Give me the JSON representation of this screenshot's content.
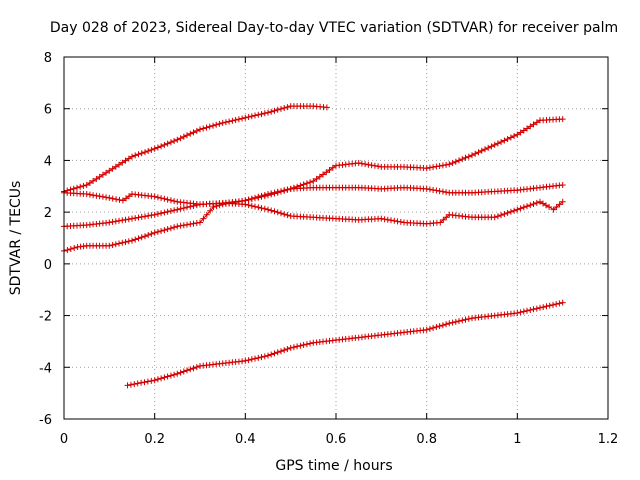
{
  "chart_data": {
    "type": "scatter",
    "title": "Day 028 of 2023, Sidereal Day-to-day VTEC variation (SDTVAR) for receiver palm",
    "xlabel": "GPS time / hours",
    "ylabel": "SDTVAR / TECUs",
    "xlim": [
      0,
      1.2
    ],
    "ylim": [
      -6,
      8
    ],
    "x_ticks": [
      0,
      0.2,
      0.4,
      0.6,
      0.8,
      1,
      1.2
    ],
    "x_tick_labels": [
      "0",
      "0.2",
      "0.4",
      "0.6",
      "0.8",
      "1",
      "1.2"
    ],
    "y_ticks": [
      -6,
      -4,
      -2,
      0,
      2,
      4,
      6,
      8
    ],
    "y_tick_labels": [
      "-6",
      "-4",
      "-2",
      "0",
      "2",
      "4",
      "6",
      "8"
    ],
    "grid": true,
    "color": "#d40000",
    "series": [
      {
        "name": "series-1",
        "points": [
          [
            0.0,
            2.8
          ],
          [
            0.05,
            3.05
          ],
          [
            0.1,
            3.6
          ],
          [
            0.15,
            4.15
          ],
          [
            0.2,
            4.45
          ],
          [
            0.25,
            4.8
          ],
          [
            0.3,
            5.2
          ],
          [
            0.35,
            5.45
          ],
          [
            0.4,
            5.65
          ],
          [
            0.45,
            5.85
          ],
          [
            0.5,
            6.1
          ],
          [
            0.55,
            6.1
          ],
          [
            0.58,
            6.05
          ]
        ]
      },
      {
        "name": "series-2",
        "points": [
          [
            0.0,
            2.75
          ],
          [
            0.05,
            2.7
          ],
          [
            0.1,
            2.55
          ],
          [
            0.13,
            2.45
          ],
          [
            0.15,
            2.7
          ],
          [
            0.2,
            2.6
          ],
          [
            0.25,
            2.4
          ],
          [
            0.3,
            2.3
          ],
          [
            0.35,
            2.35
          ],
          [
            0.4,
            2.3
          ],
          [
            0.45,
            2.1
          ],
          [
            0.5,
            1.85
          ],
          [
            0.55,
            1.8
          ],
          [
            0.6,
            1.75
          ],
          [
            0.65,
            1.7
          ],
          [
            0.7,
            1.75
          ],
          [
            0.75,
            1.6
          ],
          [
            0.8,
            1.55
          ],
          [
            0.83,
            1.6
          ],
          [
            0.85,
            1.9
          ],
          [
            0.9,
            1.8
          ],
          [
            0.95,
            1.8
          ],
          [
            1.0,
            2.1
          ],
          [
            1.05,
            2.4
          ],
          [
            1.07,
            2.2
          ],
          [
            1.08,
            2.1
          ],
          [
            1.1,
            2.4
          ]
        ]
      },
      {
        "name": "series-3",
        "points": [
          [
            0.0,
            1.45
          ],
          [
            0.05,
            1.5
          ],
          [
            0.1,
            1.6
          ],
          [
            0.15,
            1.75
          ],
          [
            0.2,
            1.9
          ],
          [
            0.25,
            2.1
          ],
          [
            0.3,
            2.3
          ],
          [
            0.35,
            2.35
          ],
          [
            0.4,
            2.45
          ],
          [
            0.45,
            2.7
          ],
          [
            0.5,
            2.9
          ],
          [
            0.55,
            2.95
          ],
          [
            0.6,
            2.95
          ],
          [
            0.65,
            2.95
          ],
          [
            0.7,
            2.9
          ],
          [
            0.75,
            2.95
          ],
          [
            0.8,
            2.9
          ],
          [
            0.85,
            2.75
          ],
          [
            0.9,
            2.75
          ],
          [
            0.95,
            2.8
          ],
          [
            1.0,
            2.85
          ],
          [
            1.05,
            2.95
          ],
          [
            1.1,
            3.05
          ]
        ]
      },
      {
        "name": "series-4",
        "points": [
          [
            0.0,
            0.5
          ],
          [
            0.03,
            0.65
          ],
          [
            0.05,
            0.7
          ],
          [
            0.1,
            0.7
          ],
          [
            0.15,
            0.9
          ],
          [
            0.2,
            1.2
          ],
          [
            0.25,
            1.45
          ],
          [
            0.3,
            1.6
          ],
          [
            0.33,
            2.2
          ],
          [
            0.35,
            2.3
          ],
          [
            0.4,
            2.45
          ],
          [
            0.45,
            2.65
          ],
          [
            0.5,
            2.9
          ],
          [
            0.55,
            3.2
          ],
          [
            0.6,
            3.8
          ],
          [
            0.65,
            3.9
          ],
          [
            0.7,
            3.75
          ],
          [
            0.75,
            3.75
          ],
          [
            0.8,
            3.7
          ],
          [
            0.85,
            3.85
          ],
          [
            0.9,
            4.2
          ],
          [
            0.95,
            4.6
          ],
          [
            1.0,
            5.0
          ],
          [
            1.05,
            5.55
          ],
          [
            1.1,
            5.6
          ]
        ]
      },
      {
        "name": "series-5",
        "points": [
          [
            0.14,
            -4.7
          ],
          [
            0.2,
            -4.5
          ],
          [
            0.25,
            -4.25
          ],
          [
            0.3,
            -3.95
          ],
          [
            0.35,
            -3.85
          ],
          [
            0.4,
            -3.75
          ],
          [
            0.45,
            -3.55
          ],
          [
            0.5,
            -3.25
          ],
          [
            0.55,
            -3.05
          ],
          [
            0.6,
            -2.95
          ],
          [
            0.65,
            -2.85
          ],
          [
            0.7,
            -2.75
          ],
          [
            0.75,
            -2.65
          ],
          [
            0.8,
            -2.55
          ],
          [
            0.85,
            -2.3
          ],
          [
            0.9,
            -2.1
          ],
          [
            0.95,
            -2.0
          ],
          [
            1.0,
            -1.9
          ],
          [
            1.05,
            -1.7
          ],
          [
            1.1,
            -1.5
          ]
        ]
      }
    ]
  }
}
